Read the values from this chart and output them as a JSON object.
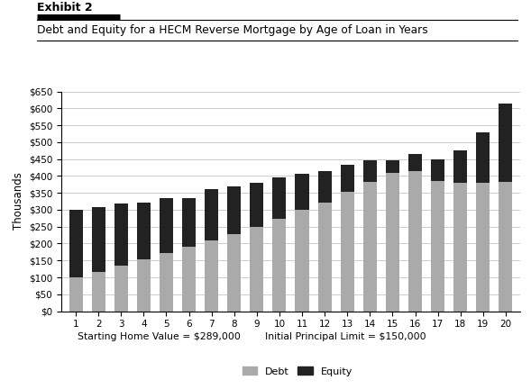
{
  "title_exhibit": "Exhibit 2",
  "title": "Debt and Equity for a HECM Reverse Mortgage by Age of Loan in Years",
  "xlabel_left": "Starting Home Value = $289,000",
  "xlabel_right": "Initial Principal Limit = $150,000",
  "ylabel": "Thousands",
  "years": [
    1,
    2,
    3,
    4,
    5,
    6,
    7,
    8,
    9,
    10,
    11,
    12,
    13,
    14,
    15,
    16,
    17,
    18,
    19,
    20
  ],
  "debt": [
    100,
    117,
    135,
    153,
    172,
    192,
    209,
    228,
    250,
    272,
    299,
    322,
    352,
    382,
    410,
    415,
    384,
    380,
    380,
    382
  ],
  "equity": [
    200,
    192,
    183,
    168,
    163,
    143,
    152,
    142,
    130,
    123,
    108,
    92,
    80,
    65,
    35,
    50,
    65,
    95,
    148,
    232
  ],
  "debt_color": "#aaaaaa",
  "equity_color": "#222222",
  "ylim_max": 650,
  "ytick_values": [
    0,
    50,
    100,
    150,
    200,
    250,
    300,
    350,
    400,
    450,
    500,
    550,
    600,
    650
  ],
  "background_color": "#ffffff",
  "grid_color": "#cccccc",
  "bar_width": 0.6,
  "legend_debt": "Debt",
  "legend_equity": "Equity"
}
